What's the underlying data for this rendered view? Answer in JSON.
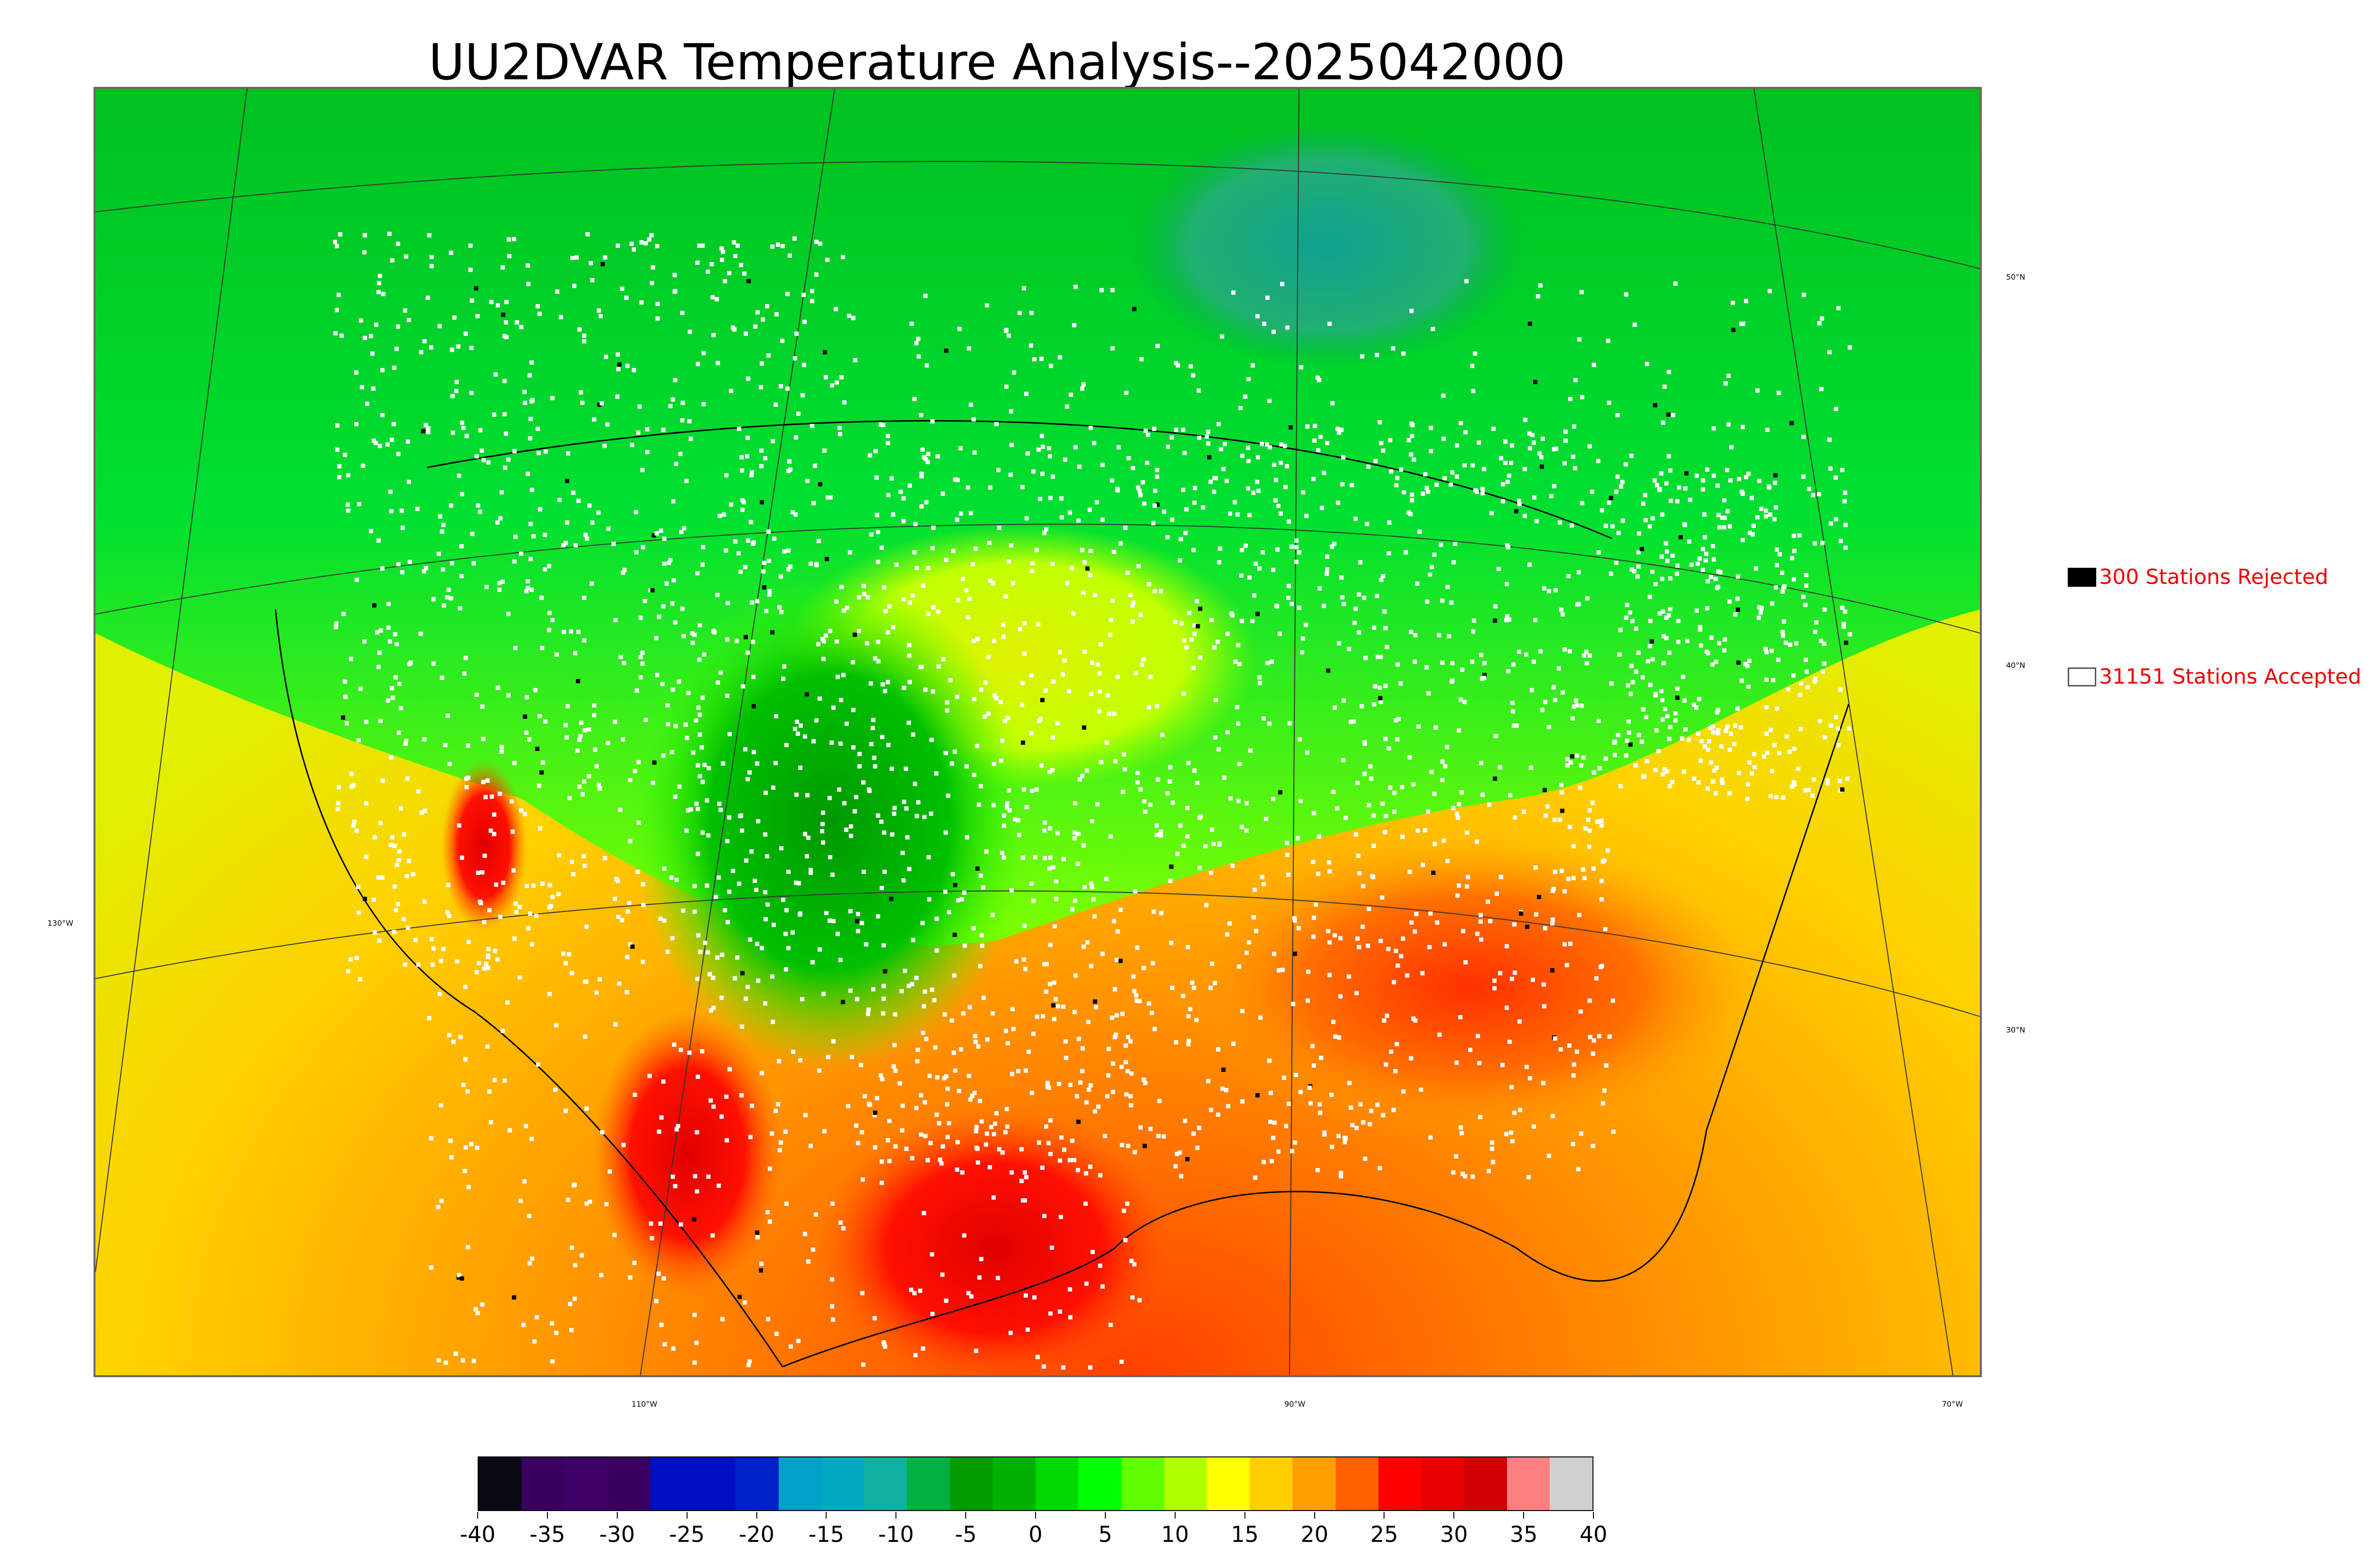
{
  "title": "UU2DVAR Temperature Analysis--2025042000",
  "legend": {
    "rejected": {
      "label": "300 Stations Rejected",
      "color": "#000000"
    },
    "accepted": {
      "label": "31151 Stations Accepted",
      "color": "#ffffff"
    }
  },
  "graticule": {
    "lat_labels": [
      "50°N",
      "40°N",
      "30°N"
    ],
    "lon_labels": [
      "130°W",
      "110°W",
      "90°W",
      "70°W"
    ]
  },
  "colorbar": {
    "min": -40,
    "max": 40,
    "tick_labels": [
      "-40",
      "-35",
      "-30",
      "-25",
      "-20",
      "-15",
      "-10",
      "-5",
      "0",
      "5",
      "10",
      "15",
      "20",
      "25",
      "30",
      "35",
      "40"
    ],
    "colors": [
      "#0a0a14",
      "#3a0060",
      "#3d0066",
      "#3a0060",
      "#0010c0",
      "#0010c0",
      "#0020c8",
      "#00a0c8",
      "#00a8c0",
      "#10b0a0",
      "#00b040",
      "#009900",
      "#00b000",
      "#00d800",
      "#00ff00",
      "#60ff00",
      "#b0ff00",
      "#ffff00",
      "#ffd000",
      "#ffa000",
      "#ff6000",
      "#ff0000",
      "#e80000",
      "#d00000",
      "#ff8080",
      "#d0d0d0"
    ]
  },
  "colors": {
    "background": "#ffffff",
    "frame": "#666666",
    "legend_text": "#ee0000"
  }
}
